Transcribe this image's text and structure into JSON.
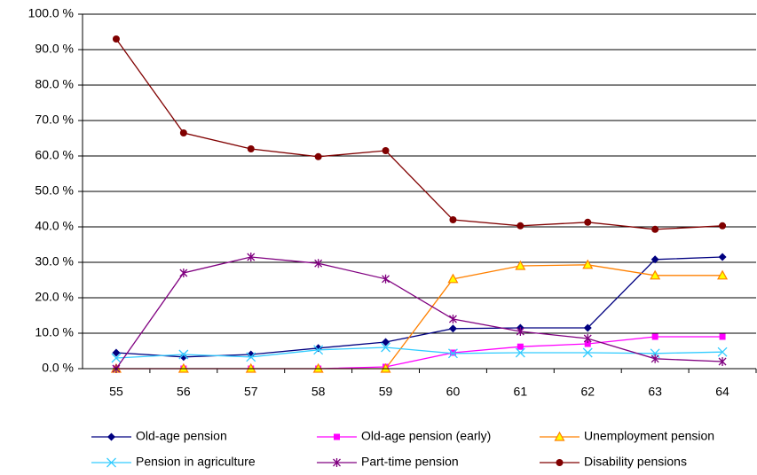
{
  "chart_data": {
    "type": "line",
    "categories": [
      "55",
      "56",
      "57",
      "58",
      "59",
      "60",
      "61",
      "62",
      "63",
      "64"
    ],
    "ylim": [
      0,
      100
    ],
    "yticks": [
      {
        "value": 0,
        "label": "0.0 %"
      },
      {
        "value": 10,
        "label": "10.0 %"
      },
      {
        "value": 20,
        "label": "20.0 %"
      },
      {
        "value": 30,
        "label": "30.0 %"
      },
      {
        "value": 40,
        "label": "40.0 %"
      },
      {
        "value": 50,
        "label": "50.0 %"
      },
      {
        "value": 60,
        "label": "60.0 %"
      },
      {
        "value": 70,
        "label": "70.0 %"
      },
      {
        "value": 80,
        "label": "80.0 %"
      },
      {
        "value": 90,
        "label": "90.0 %"
      },
      {
        "value": 100,
        "label": "100.0 %"
      }
    ],
    "grid": true,
    "legend": "bottom",
    "series": [
      {
        "name": "Old-age pension",
        "color": "#000080",
        "marker": "diamond",
        "values": [
          4.5,
          3.3,
          4,
          5.8,
          7.5,
          11.3,
          11.5,
          11.5,
          30.8,
          31.5
        ]
      },
      {
        "name": "Old-age pension (early)",
        "color": "#ff00ff",
        "marker": "square",
        "values": [
          0,
          0,
          0,
          0,
          0.5,
          4.5,
          6.2,
          7,
          9,
          9
        ]
      },
      {
        "name": "Unemployment pension",
        "color": "#ff8000",
        "marker": "triangle",
        "values": [
          0,
          0,
          0,
          0,
          0,
          25.3,
          29,
          29.3,
          26.3,
          26.3
        ]
      },
      {
        "name": "Pension in agriculture",
        "color": "#33ccff",
        "marker": "x",
        "values": [
          3,
          4,
          3.3,
          5.3,
          6,
          4.3,
          4.5,
          4.5,
          4.3,
          4.7
        ]
      },
      {
        "name": "Part-time pension",
        "color": "#800080",
        "marker": "star",
        "values": [
          0,
          27,
          31.5,
          29.7,
          25.3,
          14,
          10.5,
          8.5,
          2.8,
          2
        ]
      },
      {
        "name": "Disability pensions",
        "color": "#800000",
        "marker": "circle",
        "values": [
          93,
          66.5,
          62,
          59.8,
          61.5,
          42,
          40.3,
          41.3,
          39.3,
          40.3
        ]
      }
    ]
  }
}
